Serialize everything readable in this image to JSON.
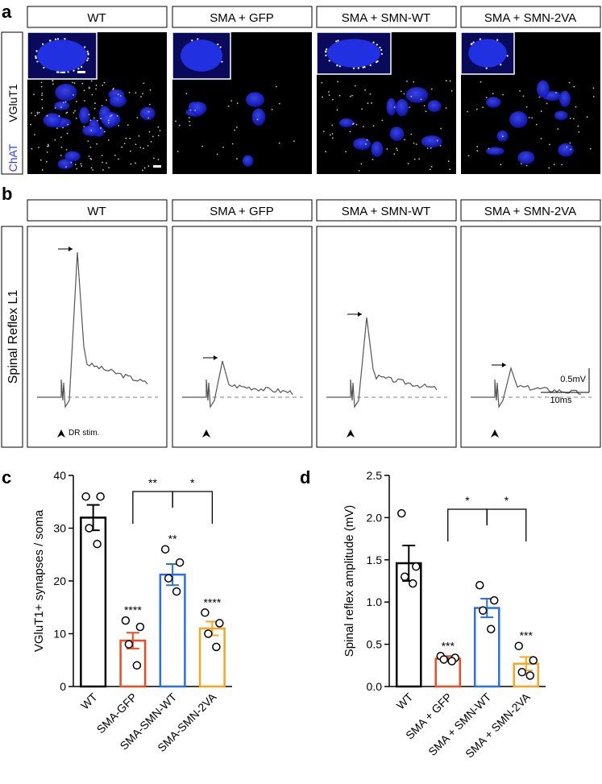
{
  "panel_letters": {
    "a": "a",
    "b": "b",
    "c": "c",
    "d": "d"
  },
  "colors": {
    "wt": "#000000",
    "sma_gfp": "#ee4b22",
    "smn_wt": "#2a6fe6",
    "smn_2va": "#f5a623",
    "chat": "#2b3bff",
    "nucleus_fill": "#1b1fd6",
    "background_black": "#000000",
    "trace": "#555555",
    "baseline": "#9a9a9a"
  },
  "panel_a": {
    "headers": [
      "WT",
      "SMA + GFP",
      "SMA + SMN-WT",
      "SMA + SMN-2VA"
    ],
    "ylabel_vglut1": "VGluT1",
    "ylabel_chat": "ChAT"
  },
  "panel_b": {
    "headers": [
      "WT",
      "SMA + GFP",
      "SMA + SMN-WT",
      "SMA + SMN-2VA"
    ],
    "ylabel": "Spinal Reflex L1",
    "stim_label": "DR stim.",
    "scale_mv": "0.5mV",
    "scale_ms": "10ms",
    "trace_peaks": [
      1.0,
      0.25,
      0.55,
      0.2
    ]
  },
  "chart_data": [
    {
      "type": "bar",
      "panel": "c",
      "categories": [
        "WT",
        "SMA-GFP",
        "SMA-SMN-WT",
        "SMA-SMN-2VA"
      ],
      "values": [
        32,
        8.7,
        21.2,
        11.0
      ],
      "errors": [
        2.4,
        1.5,
        2.0,
        1.3
      ],
      "points": [
        [
          36,
          36,
          30,
          27
        ],
        [
          12.5,
          11.3,
          8,
          4
        ],
        [
          26,
          23.5,
          20.5,
          18
        ],
        [
          14,
          12,
          10,
          7.5
        ]
      ],
      "annotations": [
        "",
        "****",
        "**",
        "****"
      ],
      "brackets": [
        {
          "from": "SMA-GFP",
          "to": "SMA-SMN-WT",
          "label": "**"
        },
        {
          "from": "SMA-SMN-WT",
          "to": "SMA-SMN-2VA",
          "label": "*"
        }
      ],
      "ylabel": "VGluT1+ synapses / soma",
      "xlabel": "",
      "ylim": [
        0,
        40
      ],
      "yticks": [
        "0",
        "10",
        "20",
        "30",
        "40"
      ]
    },
    {
      "type": "bar",
      "panel": "d",
      "categories": [
        "WT",
        "SMA + GFP",
        "SMA + SMN-WT",
        "SMA + SMN-2VA"
      ],
      "values": [
        1.46,
        0.33,
        0.93,
        0.27
      ],
      "errors": [
        0.21,
        0.03,
        0.11,
        0.08
      ],
      "points": [
        [
          2.05,
          1.42,
          1.3,
          1.22
        ],
        [
          0.36,
          0.34,
          0.32,
          0.3
        ],
        [
          1.2,
          1.02,
          0.9,
          0.68
        ],
        [
          0.48,
          0.31,
          0.17,
          0.13
        ]
      ],
      "annotations": [
        "",
        "***",
        "",
        "***"
      ],
      "brackets": [
        {
          "from": "SMA + GFP",
          "to": "SMA + SMN-WT",
          "label": "*"
        },
        {
          "from": "SMA + SMN-WT",
          "to": "SMA + SMN-2VA",
          "label": "*"
        }
      ],
      "ylabel": "Spinal reflex amplitude (mV)",
      "xlabel": "",
      "ylim": [
        0,
        2.5
      ],
      "yticks": [
        "0.0",
        "0.5",
        "1.0",
        "1.5",
        "2.0",
        "2.5"
      ]
    }
  ]
}
